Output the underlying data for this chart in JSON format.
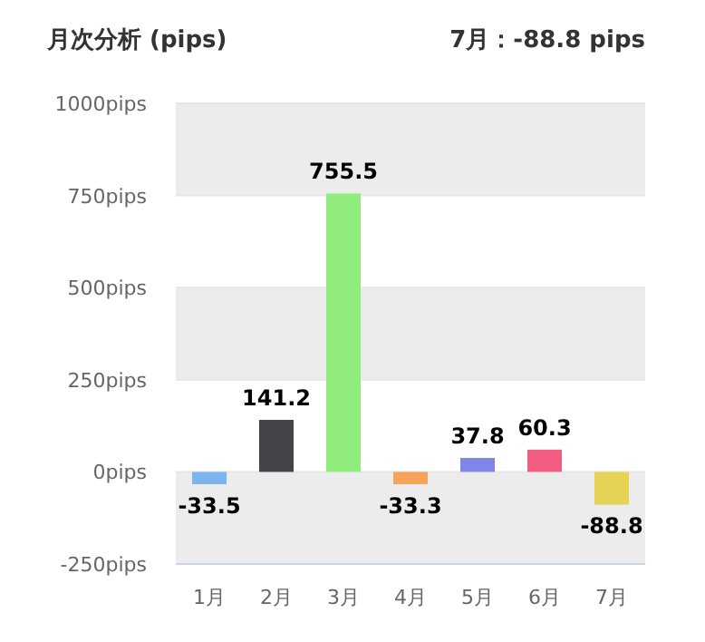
{
  "chart_data": {
    "type": "bar",
    "title": "月次分析 (pips)",
    "subtitle": "7月：-88.8 pips",
    "categories": [
      "1月",
      "2月",
      "3月",
      "4月",
      "5月",
      "6月",
      "7月"
    ],
    "values": [
      -33.5,
      141.2,
      755.5,
      -33.3,
      37.8,
      60.3,
      -88.8
    ],
    "colors": [
      "#7cb5ec",
      "#434348",
      "#90ed7d",
      "#f7a35c",
      "#8085e9",
      "#f15c80",
      "#e4d354"
    ],
    "ylim": [
      -250,
      1000
    ],
    "yticks": [
      {
        "value": -250,
        "label": "-250pips"
      },
      {
        "value": 0,
        "label": "0pips"
      },
      {
        "value": 250,
        "label": "250pips"
      },
      {
        "value": 500,
        "label": "500pips"
      },
      {
        "value": 750,
        "label": "750pips"
      },
      {
        "value": 1000,
        "label": "1000pips"
      }
    ],
    "bands": [
      {
        "axis": "y",
        "from": -250,
        "to": 0,
        "color": "#ececec"
      },
      {
        "axis": "y",
        "from": 250,
        "to": 500,
        "color": "#ececec"
      },
      {
        "axis": "y",
        "from": 750,
        "to": 1000,
        "color": "#ececec"
      }
    ],
    "grid": "y",
    "data_labels": true
  }
}
